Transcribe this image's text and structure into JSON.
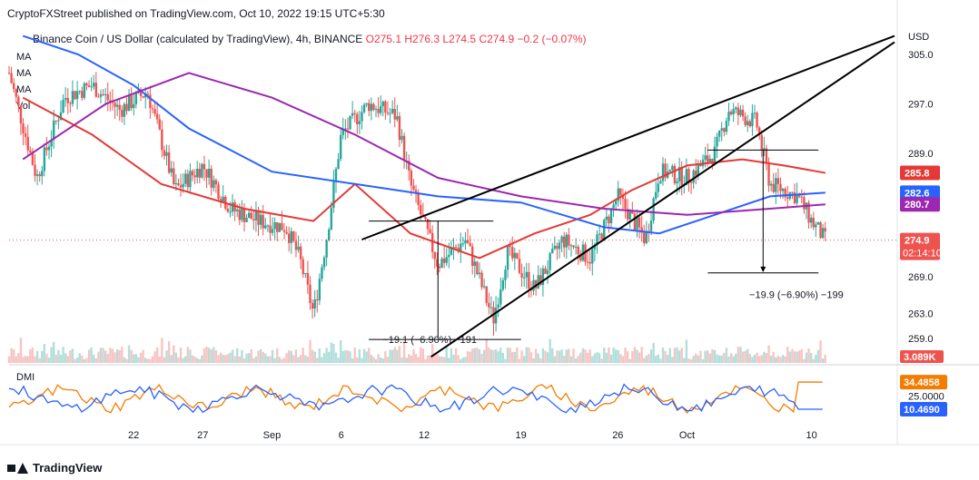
{
  "header": {
    "publisher": "CryptoFXStreet published on TradingView.com, Oct 10, 2022 19:15 UTC+5:30"
  },
  "symbol": {
    "title": "Binance Coin / US Dollar (calculated by TradingView), 4h, BINANCE",
    "open": "O275.1",
    "high": "H276.3",
    "low": "L274.5",
    "close": "C274.9",
    "change": "−0.2 (−0.07%)"
  },
  "legend": [
    "MA",
    "MA",
    "MA",
    "Vol"
  ],
  "indicator_label": "DMI",
  "footer": {
    "brand": "TradingView"
  },
  "colors": {
    "ma_red": "#e53935",
    "ma_blue": "#2962ff",
    "ma_purple": "#9c27b0",
    "up": "#26a69a",
    "down": "#ef5350",
    "dmi_orange": "#f57c00",
    "dmi_blue": "#2962ff",
    "trendline": "#000000"
  },
  "chart_data": {
    "type": "candlestick",
    "currency_label": "USD",
    "y_ticks": [
      305.0,
      297.0,
      289.0,
      269.0,
      263.0,
      259.0
    ],
    "y_tick_labels": [
      "305.0",
      "297.0",
      "289.0",
      "269.0",
      "263.0",
      "259.0"
    ],
    "ylim": [
      255,
      310
    ],
    "x_tick_labels": [
      "22",
      "27",
      "Sep",
      "6",
      "12",
      "19",
      "26",
      "Oct",
      "10"
    ],
    "x_ticks_day": [
      0,
      5,
      10,
      15,
      21,
      28,
      35,
      40,
      49
    ],
    "price_tags": [
      {
        "label": "285.8",
        "value": 285.8,
        "color": "#e53935"
      },
      {
        "label": "282.6",
        "value": 282.6,
        "color": "#2962ff"
      },
      {
        "label": "280.7",
        "value": 280.7,
        "color": "#9c27b0"
      },
      {
        "label": "274.9",
        "value": 274.9,
        "color": "#ef5350",
        "sub": "02:14:10"
      }
    ],
    "last_price": 274.9,
    "series": [
      {
        "name": "MA",
        "color": "#e53935",
        "x": [
          -8,
          -3,
          2,
          8,
          13,
          16,
          20,
          25,
          29,
          33,
          36,
          40,
          44,
          47,
          50
        ],
        "y": [
          298,
          292,
          284,
          280,
          278,
          284,
          276,
          272,
          276,
          279,
          283,
          287,
          288,
          287,
          285.8
        ]
      },
      {
        "name": "MA",
        "color": "#2962ff",
        "x": [
          -8,
          -4,
          0,
          4,
          10,
          16,
          22,
          28,
          34,
          38,
          42,
          46,
          50
        ],
        "y": [
          308,
          305,
          300,
          293,
          286,
          284,
          282,
          281,
          277,
          276,
          279,
          282,
          282.6
        ]
      },
      {
        "name": "MA",
        "color": "#9c27b0",
        "x": [
          -8,
          -2,
          4,
          10,
          16,
          22,
          28,
          34,
          40,
          46,
          50
        ],
        "y": [
          288,
          297,
          302,
          298,
          292,
          285,
          282,
          280,
          279,
          280,
          280.7
        ]
      }
    ],
    "annotations": [
      {
        "label": "−19.9 (−6.90%) −199",
        "value_pct": -6.9
      },
      {
        "label": "−19.1 (−6.90%) −191",
        "value_pct": -6.9
      }
    ],
    "volume_label": "3.089K",
    "dmi": {
      "ticks": [
        "30.000",
        "25.0000"
      ],
      "plus_di_label": "34.4858",
      "minus_di_label": "10.4690",
      "plus_di": 34.4858,
      "minus_di": 10.469
    }
  }
}
